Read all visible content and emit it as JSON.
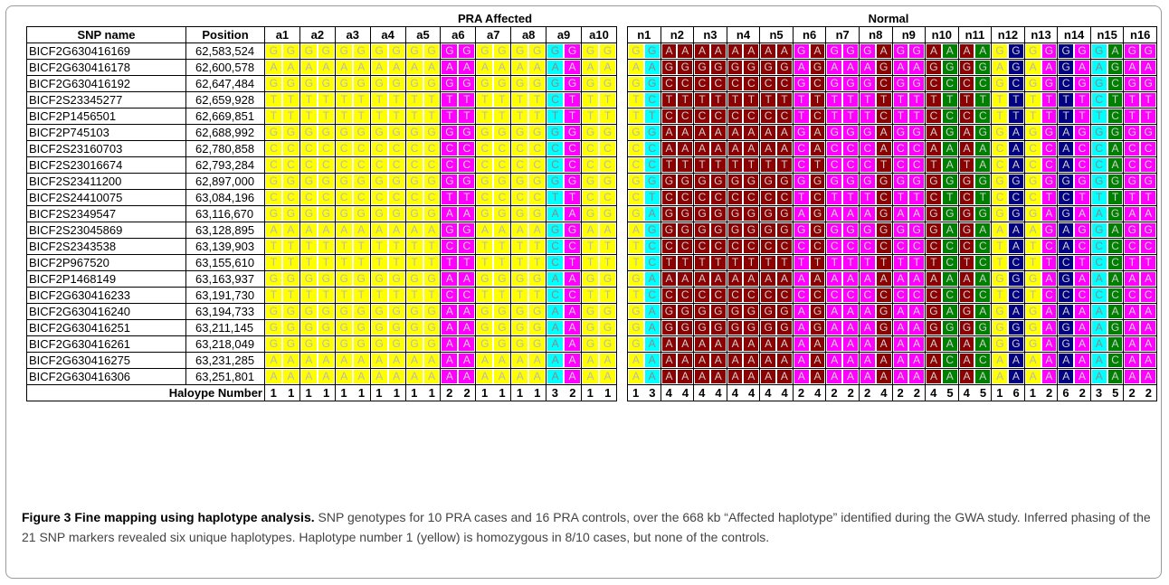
{
  "figure": {
    "group_affected": "PRA Affected",
    "group_normal": "Normal",
    "header_snp": "SNP name",
    "header_position": "Position",
    "haplotype_label": "Haloype Number",
    "caption_title": "Figure 3 Fine mapping using haplotype analysis.",
    "caption_body": " SNP genotypes for 10 PRA cases and 16 PRA controls, over the 668 kb “Affected haplotype” identified during the GWA study. Inferred phasing of the 21 SNP markers revealed six unique haplotypes. Haplotype number 1 (yellow) is homozygous in 8/10 cases, but none of the controls."
  },
  "colors": {
    "1": {
      "bg": "#ffff00",
      "fg": "#b8b8b8"
    },
    "2": {
      "bg": "#ff00ff",
      "fg": "#d6d6d6"
    },
    "3": {
      "bg": "#00ffff",
      "fg": "#8a8a8a"
    },
    "4": {
      "bg": "#8b0000",
      "fg": "#d0d0d0"
    },
    "5": {
      "bg": "#008000",
      "fg": "#d0d0d0"
    },
    "6": {
      "bg": "#000080",
      "fg": "#d0d0d0"
    }
  },
  "affected_samples": [
    "a1",
    "a2",
    "a3",
    "a4",
    "a5",
    "a6",
    "a7",
    "a8",
    "a9",
    "a10"
  ],
  "normal_samples": [
    "n1",
    "n2",
    "n3",
    "n4",
    "n5",
    "n6",
    "n7",
    "n8",
    "n9",
    "n10",
    "n11",
    "n12",
    "n13",
    "n14",
    "n15",
    "n16"
  ],
  "haplotypes": {
    "affected": [
      [
        1,
        1
      ],
      [
        1,
        1
      ],
      [
        1,
        1
      ],
      [
        1,
        1
      ],
      [
        1,
        1
      ],
      [
        2,
        2
      ],
      [
        1,
        1
      ],
      [
        1,
        1
      ],
      [
        3,
        2
      ],
      [
        1,
        1
      ]
    ],
    "normal": [
      [
        1,
        3
      ],
      [
        4,
        4
      ],
      [
        4,
        4
      ],
      [
        4,
        4
      ],
      [
        4,
        4
      ],
      [
        2,
        4
      ],
      [
        2,
        2
      ],
      [
        2,
        4
      ],
      [
        2,
        2
      ],
      [
        4,
        5
      ],
      [
        4,
        5
      ],
      [
        1,
        6
      ],
      [
        1,
        2
      ],
      [
        6,
        2
      ],
      [
        3,
        5
      ],
      [
        2,
        2
      ]
    ]
  },
  "haplotype_alleles": {
    "1": "GAGTTGCCGCGATTGTGGGAA",
    "2": "GAGTTGCCGTAGCTACAAAAA",
    "3": "GAGCTGCCGTAGCCACAAAAA",
    "4": "AGCTCAATGCGGCTACGGAAA",
    "5": "AGCTCGAAGTGACCACAGACA",
    "6": "GGCTTAAAGCGAACGCAGGAA"
  },
  "rows": [
    {
      "snp": "BICF2G630416169",
      "position": "62,583,524"
    },
    {
      "snp": "BICF2G630416178",
      "position": "62,600,578"
    },
    {
      "snp": "BICF2G630416192",
      "position": "62,647,484"
    },
    {
      "snp": "BICF2S23345277",
      "position": "62,659,928"
    },
    {
      "snp": "BICF2P1456501",
      "position": "62,669,851"
    },
    {
      "snp": "BICF2P745103",
      "position": "62,688,992"
    },
    {
      "snp": "BICF2S23160703",
      "position": "62,780,858"
    },
    {
      "snp": "BICF2S23016674",
      "position": "62,793,284"
    },
    {
      "snp": "BICF2S23411200",
      "position": "62,897,000"
    },
    {
      "snp": "BICF2S24410075",
      "position": "63,084,196"
    },
    {
      "snp": "BICF2S2349547",
      "position": "63,116,670"
    },
    {
      "snp": "BICF2S23045869",
      "position": "63,128,895"
    },
    {
      "snp": "BICF2S2343538",
      "position": "63,139,903"
    },
    {
      "snp": "BICF2P967520",
      "position": "63,155,610"
    },
    {
      "snp": "BICF2P1468149",
      "position": "63,163,937"
    },
    {
      "snp": "BICF2G630416233",
      "position": "63,191,730"
    },
    {
      "snp": "BICF2G630416240",
      "position": "63,194,733"
    },
    {
      "snp": "BICF2G630416251",
      "position": "63,211,145"
    },
    {
      "snp": "BICF2G630416261",
      "position": "63,218,049"
    },
    {
      "snp": "BICF2G630416275",
      "position": "63,231,285"
    },
    {
      "snp": "BICF2G630416306",
      "position": "63,251,801"
    }
  ]
}
